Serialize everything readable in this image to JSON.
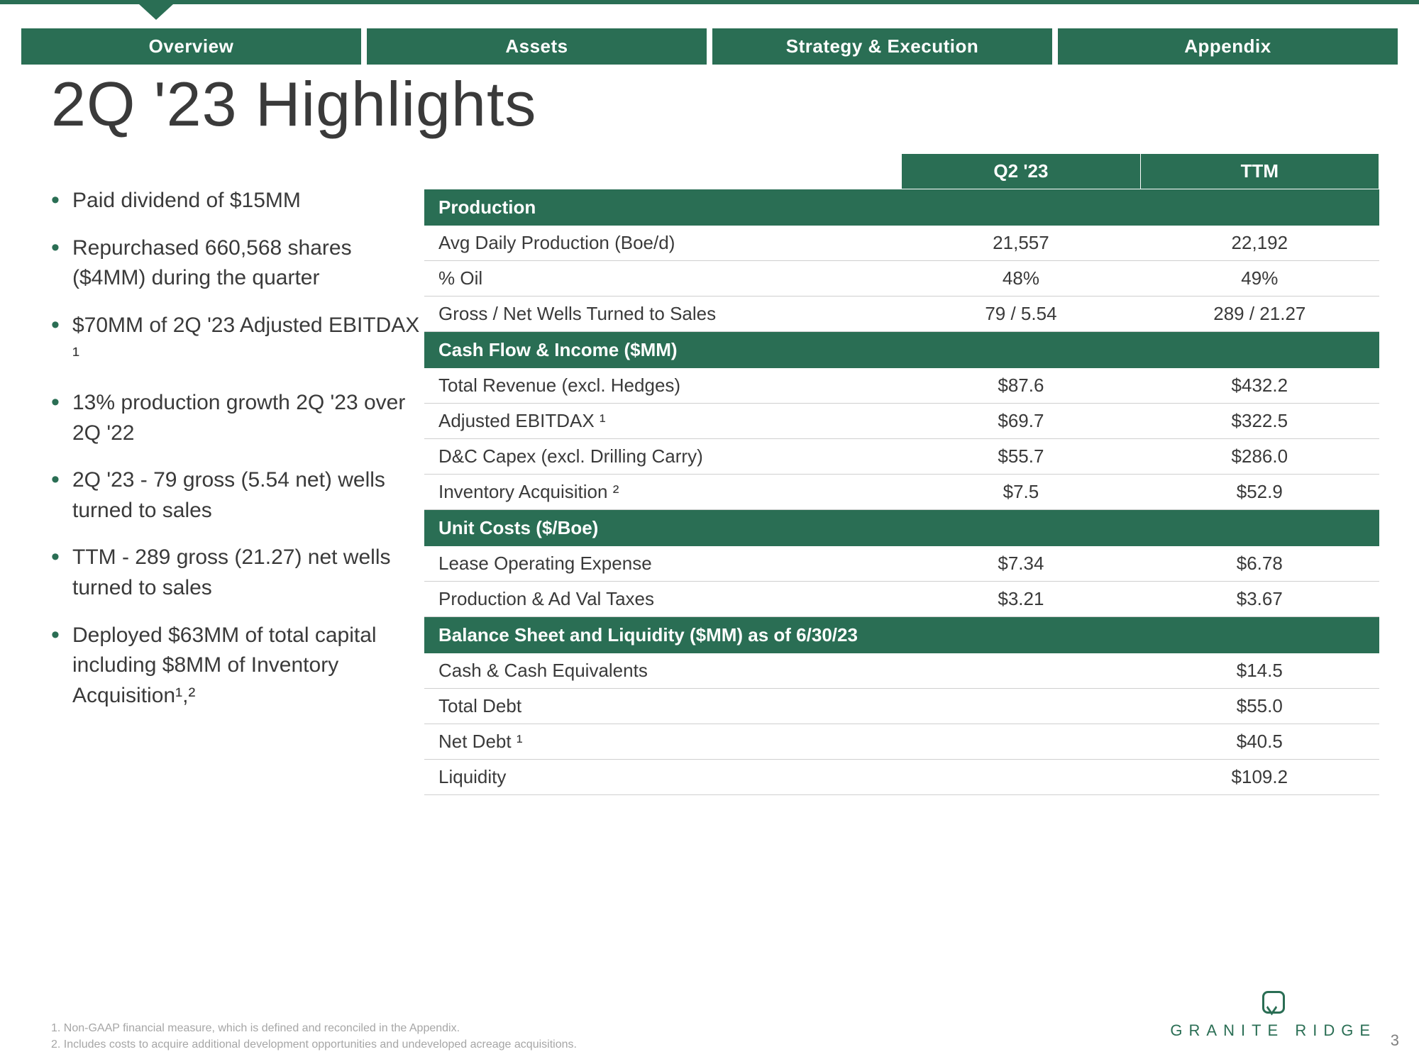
{
  "colors": {
    "brand_green": "#2a6e54",
    "text": "#3a3a3a",
    "muted": "#a6a6a6",
    "row_border": "#cfcfcf",
    "background": "#ffffff"
  },
  "typography": {
    "title_fontsize": 88,
    "bullet_fontsize": 30,
    "table_fontsize": 26,
    "nav_fontsize": 26,
    "footnote_fontsize": 16,
    "brand_letter_spacing": 9
  },
  "nav": {
    "tabs": [
      "Overview",
      "Assets",
      "Strategy & Execution",
      "Appendix"
    ],
    "active_index": 0
  },
  "title": "2Q '23 Highlights",
  "bullets": [
    "Paid dividend of $15MM",
    "Repurchased 660,568 shares ($4MM) during the quarter",
    "$70MM of 2Q '23 Adjusted EBITDAX ¹",
    "13% production growth 2Q '23 over 2Q '22",
    "2Q '23 - 79 gross (5.54 net) wells turned to sales",
    "TTM - 289 gross (21.27) net wells turned to sales",
    "Deployed $63MM of total capital including $8MM of Inventory Acquisition¹,²"
  ],
  "table": {
    "columns": [
      "",
      "Q2 '23",
      "TTM"
    ],
    "sections": [
      {
        "header": "Production",
        "rows": [
          {
            "label": "Avg Daily Production (Boe/d)",
            "q2": "21,557",
            "ttm": "22,192"
          },
          {
            "label": "% Oil",
            "q2": "48%",
            "ttm": "49%"
          },
          {
            "label": "Gross / Net Wells Turned to Sales",
            "q2": "79 / 5.54",
            "ttm": "289 / 21.27"
          }
        ]
      },
      {
        "header": "Cash Flow & Income ($MM)",
        "rows": [
          {
            "label": "Total Revenue (excl. Hedges)",
            "q2": "$87.6",
            "ttm": "$432.2"
          },
          {
            "label": "Adjusted EBITDAX ¹",
            "q2": "$69.7",
            "ttm": "$322.5"
          },
          {
            "label": "D&C Capex (excl. Drilling Carry)",
            "q2": "$55.7",
            "ttm": "$286.0"
          },
          {
            "label": "Inventory Acquisition ²",
            "q2": "$7.5",
            "ttm": "$52.9"
          }
        ]
      },
      {
        "header": "Unit Costs ($/Boe)",
        "rows": [
          {
            "label": "Lease Operating Expense",
            "q2": "$7.34",
            "ttm": "$6.78"
          },
          {
            "label": "Production & Ad Val Taxes",
            "q2": "$3.21",
            "ttm": "$3.67"
          }
        ]
      },
      {
        "header": "Balance Sheet and Liquidity ($MM) as of 6/30/23",
        "rows": [
          {
            "label": "Cash & Cash Equivalents",
            "q2": "",
            "ttm": "$14.5"
          },
          {
            "label": "Total Debt",
            "q2": "",
            "ttm": "$55.0"
          },
          {
            "label": "Net Debt ¹",
            "q2": "",
            "ttm": "$40.5"
          },
          {
            "label": "Liquidity",
            "q2": "",
            "ttm": "$109.2"
          }
        ]
      }
    ]
  },
  "footnotes": [
    "1.  Non-GAAP financial measure, which is defined and reconciled in the Appendix.",
    "2.  Includes costs to acquire additional development opportunities and undeveloped acreage acquisitions."
  ],
  "brand": {
    "name": "GRANITE RIDGE"
  },
  "page_number": "3"
}
